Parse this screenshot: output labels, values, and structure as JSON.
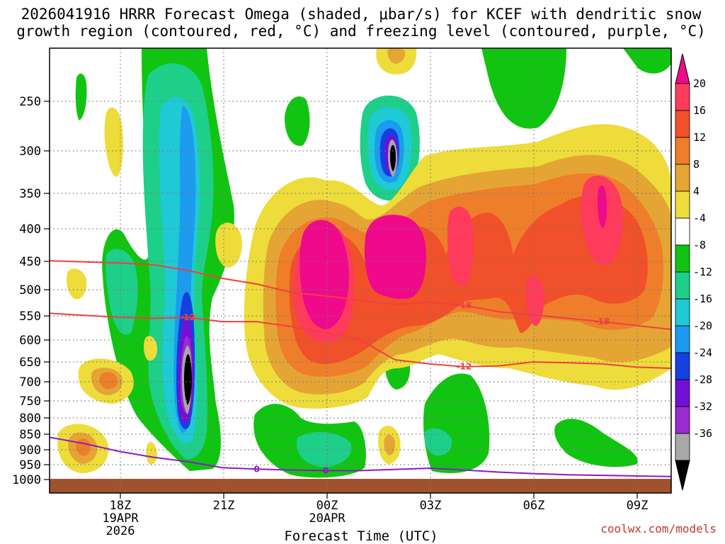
{
  "chart_data": {
    "type": "time-height contour",
    "title_line1": "2026041916 HRRR Forecast Omega (shaded, μbar/s) for KCEF with dendritic snow",
    "title_line2": "growth region (contoured, red, °C) and freezing level (contoured, purple, °C)",
    "xlabel": "Forecast Time (UTC)",
    "credit": "coolwx.com/models",
    "x_ticks": [
      {
        "hour": 2,
        "label": "18Z",
        "sub1": "19APR",
        "sub2": "2026"
      },
      {
        "hour": 5,
        "label": "21Z",
        "sub1": "",
        "sub2": ""
      },
      {
        "hour": 8,
        "label": "00Z",
        "sub1": "20APR",
        "sub2": ""
      },
      {
        "hour": 11,
        "label": "03Z",
        "sub1": "",
        "sub2": ""
      },
      {
        "hour": 14,
        "label": "06Z",
        "sub1": "",
        "sub2": ""
      },
      {
        "hour": 17,
        "label": "09Z",
        "sub1": "",
        "sub2": ""
      }
    ],
    "x_range_hours": [
      0,
      18
    ],
    "pressure_levels": [
      250,
      300,
      350,
      400,
      450,
      500,
      550,
      600,
      650,
      700,
      750,
      800,
      850,
      900,
      950,
      1000
    ],
    "y_range_mb": [
      200,
      1010
    ],
    "colorbar_labels": [
      "20",
      "16",
      "12",
      "8",
      "4",
      "-4",
      "-8",
      "-12",
      "-16",
      "-20",
      "-24",
      "-28",
      "-32",
      "-36"
    ],
    "colorbar_colors": [
      "#ff3b5c",
      "#f0502a",
      "#ee7e2a",
      "#e4a534",
      "#eddc3a",
      "#ffffff",
      "#11c411",
      "#1ecf8a",
      "#1fc9d6",
      "#1c9bef",
      "#1440e0",
      "#7210d6",
      "#9b2ad0",
      "#a8a8a8"
    ],
    "colorbar_top_color": "#ee0a8a",
    "colorbar_bottom_color": "#000000",
    "contours": [
      {
        "name": "-12C",
        "color": "#ee4040",
        "label": "-12",
        "points": [
          [
            0,
            545
          ],
          [
            2,
            553
          ],
          [
            3,
            555
          ],
          [
            4,
            553
          ],
          [
            5,
            562
          ],
          [
            6,
            562
          ],
          [
            7,
            572
          ],
          [
            8,
            585
          ],
          [
            9,
            600
          ],
          [
            10,
            645
          ],
          [
            11,
            655
          ],
          [
            12,
            662
          ],
          [
            13,
            660
          ],
          [
            14,
            650
          ],
          [
            15,
            652
          ],
          [
            16,
            655
          ],
          [
            17,
            663
          ],
          [
            18,
            666
          ]
        ]
      },
      {
        "name": "-18C",
        "color": "#ee4040",
        "label": "-18",
        "points": [
          [
            0,
            449
          ],
          [
            2,
            453
          ],
          [
            3,
            456
          ],
          [
            4,
            466
          ],
          [
            5,
            480
          ],
          [
            6,
            490
          ],
          [
            7,
            505
          ],
          [
            8,
            512
          ],
          [
            9,
            520
          ],
          [
            10,
            528
          ],
          [
            11,
            524
          ],
          [
            12,
            530
          ],
          [
            13,
            542
          ],
          [
            14,
            548
          ],
          [
            15,
            555
          ],
          [
            16,
            562
          ],
          [
            17,
            570
          ],
          [
            18,
            578
          ]
        ]
      },
      {
        "name": "freezing level",
        "color": "#8f17c8",
        "label": "0",
        "points": [
          [
            0,
            860
          ],
          [
            1,
            880
          ],
          [
            2,
            905
          ],
          [
            3,
            925
          ],
          [
            4,
            940
          ],
          [
            5,
            960
          ],
          [
            6,
            965
          ],
          [
            7,
            968
          ],
          [
            8,
            970
          ],
          [
            9,
            970
          ],
          [
            10,
            966
          ],
          [
            11,
            962
          ],
          [
            12,
            968
          ],
          [
            13,
            975
          ],
          [
            14,
            980
          ],
          [
            15,
            984
          ],
          [
            16,
            986
          ],
          [
            17,
            988
          ],
          [
            18,
            990
          ]
        ]
      }
    ]
  }
}
